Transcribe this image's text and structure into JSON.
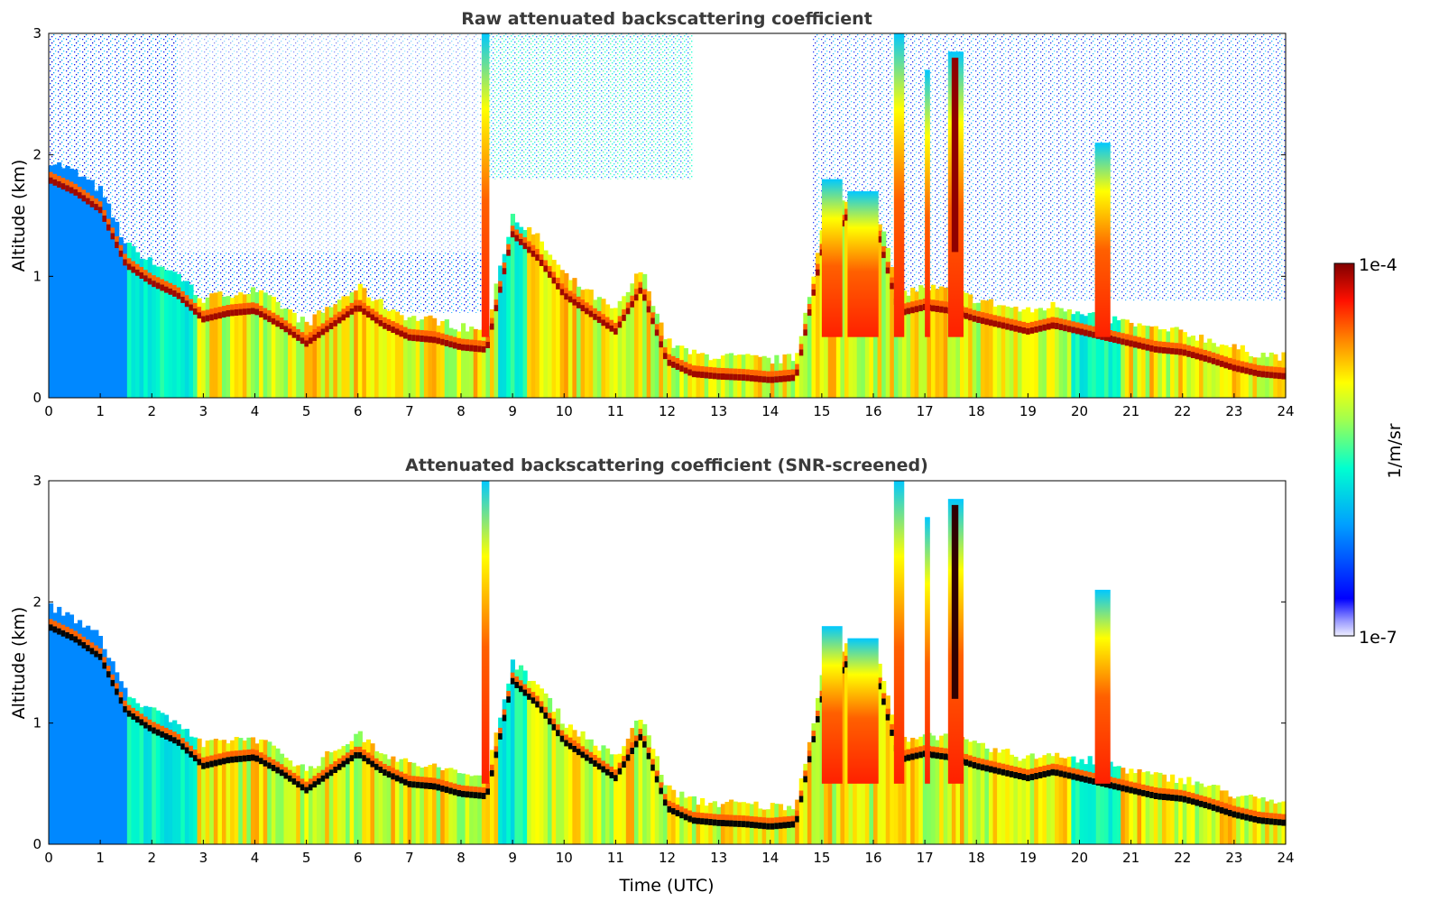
{
  "chart_data": [
    {
      "type": "heatmap",
      "title": "Raw attenuated backscattering coefficient",
      "xlabel": "",
      "ylabel": "Altitude (km)",
      "xlim": [
        0,
        24
      ],
      "ylim": [
        0,
        3
      ],
      "xticks": [
        "0",
        "1",
        "2",
        "3",
        "4",
        "5",
        "6",
        "7",
        "8",
        "9",
        "10",
        "11",
        "12",
        "13",
        "14",
        "15",
        "16",
        "17",
        "18",
        "19",
        "20",
        "21",
        "22",
        "23",
        "24"
      ],
      "yticks": [
        "0",
        "1",
        "2",
        "3"
      ],
      "screened": false,
      "boundary_layer_top_km": [
        {
          "x": 0.0,
          "y": 1.8
        },
        {
          "x": 0.5,
          "y": 1.7
        },
        {
          "x": 1.0,
          "y": 1.55
        },
        {
          "x": 1.5,
          "y": 1.1
        },
        {
          "x": 2.0,
          "y": 0.95
        },
        {
          "x": 2.5,
          "y": 0.85
        },
        {
          "x": 3.0,
          "y": 0.65
        },
        {
          "x": 3.5,
          "y": 0.7
        },
        {
          "x": 4.0,
          "y": 0.72
        },
        {
          "x": 4.5,
          "y": 0.6
        },
        {
          "x": 5.0,
          "y": 0.45
        },
        {
          "x": 5.5,
          "y": 0.6
        },
        {
          "x": 6.0,
          "y": 0.75
        },
        {
          "x": 6.5,
          "y": 0.6
        },
        {
          "x": 7.0,
          "y": 0.5
        },
        {
          "x": 7.5,
          "y": 0.48
        },
        {
          "x": 8.0,
          "y": 0.42
        },
        {
          "x": 8.5,
          "y": 0.4
        },
        {
          "x": 9.0,
          "y": 1.35
        },
        {
          "x": 9.5,
          "y": 1.15
        },
        {
          "x": 10.0,
          "y": 0.85
        },
        {
          "x": 10.5,
          "y": 0.7
        },
        {
          "x": 11.0,
          "y": 0.55
        },
        {
          "x": 11.5,
          "y": 0.9
        },
        {
          "x": 12.0,
          "y": 0.3
        },
        {
          "x": 12.5,
          "y": 0.2
        },
        {
          "x": 13.0,
          "y": 0.18
        },
        {
          "x": 13.5,
          "y": 0.17
        },
        {
          "x": 14.0,
          "y": 0.15
        },
        {
          "x": 14.5,
          "y": 0.17
        },
        {
          "x": 15.0,
          "y": 1.2
        },
        {
          "x": 15.5,
          "y": 1.5
        },
        {
          "x": 16.0,
          "y": 1.5
        },
        {
          "x": 16.5,
          "y": 0.7
        },
        {
          "x": 17.0,
          "y": 0.75
        },
        {
          "x": 17.5,
          "y": 0.72
        },
        {
          "x": 18.0,
          "y": 0.65
        },
        {
          "x": 18.5,
          "y": 0.6
        },
        {
          "x": 19.0,
          "y": 0.55
        },
        {
          "x": 19.5,
          "y": 0.6
        },
        {
          "x": 20.0,
          "y": 0.55
        },
        {
          "x": 20.5,
          "y": 0.5
        },
        {
          "x": 21.0,
          "y": 0.45
        },
        {
          "x": 21.5,
          "y": 0.4
        },
        {
          "x": 22.0,
          "y": 0.38
        },
        {
          "x": 22.5,
          "y": 0.32
        },
        {
          "x": 23.0,
          "y": 0.25
        },
        {
          "x": 23.5,
          "y": 0.2
        },
        {
          "x": 24.0,
          "y": 0.18
        }
      ]
    },
    {
      "type": "heatmap",
      "title": "Attenuated backscattering coefficient (SNR-screened)",
      "xlabel": "Time (UTC)",
      "ylabel": "Altitude (km)",
      "xlim": [
        0,
        24
      ],
      "ylim": [
        0,
        3
      ],
      "xticks": [
        "0",
        "1",
        "2",
        "3",
        "4",
        "5",
        "6",
        "7",
        "8",
        "9",
        "10",
        "11",
        "12",
        "13",
        "14",
        "15",
        "16",
        "17",
        "18",
        "19",
        "20",
        "21",
        "22",
        "23",
        "24"
      ],
      "yticks": [
        "0",
        "1",
        "2",
        "3"
      ],
      "screened": true
    }
  ],
  "colorbar": {
    "label": "1/m/sr",
    "max_label": "1e-4",
    "min_label": "1e-7",
    "colormap": "jet",
    "stops": [
      "#f0f0ff",
      "#0000ff",
      "#00aaff",
      "#00ffcc",
      "#aaff44",
      "#ffff00",
      "#ff8800",
      "#ff2200",
      "#800000"
    ]
  }
}
